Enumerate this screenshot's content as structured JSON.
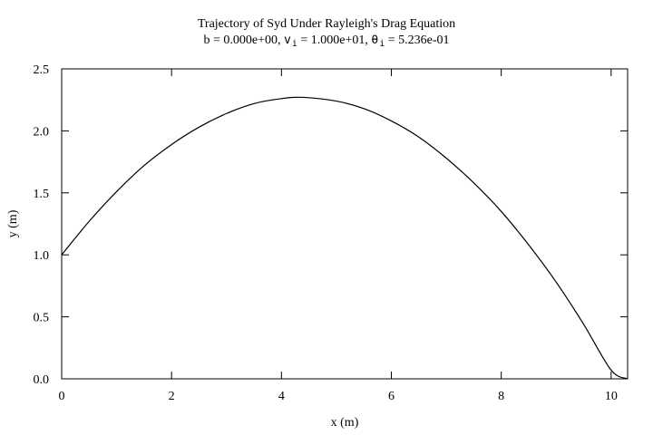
{
  "chart_data": {
    "type": "line",
    "title": "Trajectory of Syd Under Rayleigh's Drag Equation",
    "subtitle": {
      "b_label": "b",
      "b_value": "0.000e+00",
      "v_symbol": "v",
      "v_sub": "i",
      "v_value": "1.000e+01",
      "theta_symbol": "θ",
      "theta_sub": "i",
      "theta_value": "5.236e-01"
    },
    "xlabel": "x (m)",
    "ylabel": "y (m)",
    "xlim": [
      0,
      10.3
    ],
    "ylim": [
      0,
      2.5
    ],
    "xticks": [
      "0",
      "2",
      "4",
      "6",
      "8",
      "10"
    ],
    "yticks": [
      "0.0",
      "0.5",
      "1.0",
      "1.5",
      "2.0",
      "2.5"
    ],
    "grid": false,
    "legend": "none",
    "series": [
      {
        "x": [
          0,
          0.5,
          1,
          1.5,
          2,
          2.5,
          3,
          3.5,
          4,
          4.4,
          5,
          5.5,
          6,
          6.5,
          7,
          7.5,
          8,
          8.5,
          9,
          9.5,
          10,
          10.3
        ],
        "y": [
          1.0,
          1.27,
          1.51,
          1.72,
          1.89,
          2.03,
          2.14,
          2.22,
          2.26,
          2.27,
          2.24,
          2.18,
          2.08,
          1.95,
          1.78,
          1.58,
          1.35,
          1.08,
          0.78,
          0.44,
          0.07,
          0.0
        ],
        "color": "#000000"
      }
    ]
  }
}
